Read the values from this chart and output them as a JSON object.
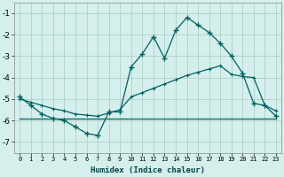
{
  "xlabel": "Humidex (Indice chaleur)",
  "ylabel": "",
  "background_color": "#d4efec",
  "grid_color": "#b0d0cc",
  "line_color": "#006060",
  "x_ticks": [
    0,
    1,
    2,
    3,
    4,
    5,
    6,
    7,
    8,
    9,
    10,
    11,
    12,
    13,
    14,
    15,
    16,
    17,
    18,
    19,
    20,
    21,
    22,
    23
  ],
  "y_ticks": [
    -7,
    -6,
    -5,
    -4,
    -3,
    -2,
    -1
  ],
  "ylim": [
    -7.5,
    -0.5
  ],
  "xlim": [
    -0.5,
    23.5
  ],
  "series1_x": [
    0,
    1,
    2,
    3,
    4,
    5,
    6,
    7,
    8,
    9,
    10,
    11,
    12,
    13,
    14,
    15,
    16,
    17,
    18,
    19,
    20,
    21,
    22,
    23
  ],
  "series1_y": [
    -4.9,
    -5.3,
    -5.7,
    -5.9,
    -6.0,
    -6.3,
    -6.6,
    -6.7,
    -5.6,
    -5.6,
    -3.5,
    -2.9,
    -2.1,
    -3.1,
    -1.8,
    -1.2,
    -1.55,
    -1.9,
    -2.4,
    -3.0,
    -3.8,
    -5.2,
    -5.3,
    -5.8
  ],
  "series2_x": [
    0,
    1,
    2,
    3,
    4,
    5,
    6,
    7,
    8,
    9,
    10,
    11,
    12,
    13,
    14,
    15,
    16,
    17,
    18,
    19,
    20,
    21,
    22,
    23
  ],
  "series2_y": [
    -5.0,
    -5.15,
    -5.3,
    -5.45,
    -5.55,
    -5.7,
    -5.75,
    -5.8,
    -5.65,
    -5.5,
    -4.9,
    -4.7,
    -4.5,
    -4.3,
    -4.1,
    -3.9,
    -3.75,
    -3.6,
    -3.45,
    -3.85,
    -3.95,
    -4.0,
    -5.3,
    -5.55
  ],
  "series3_x": [
    0,
    20,
    23
  ],
  "series3_y": [
    -5.9,
    -5.9,
    -5.9
  ]
}
